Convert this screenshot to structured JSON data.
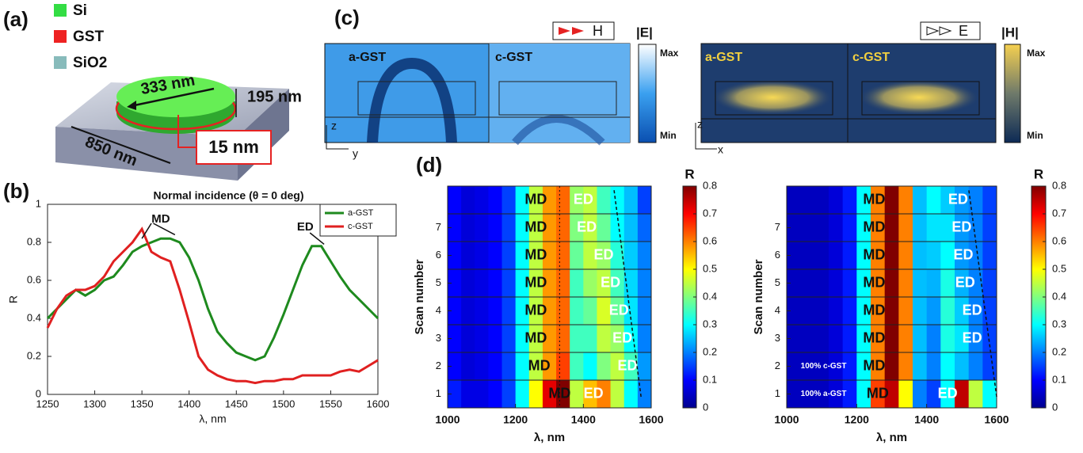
{
  "panel_labels": [
    "(a)",
    "(b)",
    "(c)",
    "(d)"
  ],
  "panel_a": {
    "legend": [
      {
        "label": "Si",
        "color": "#33dd44"
      },
      {
        "label": "GST",
        "color": "#ee2222"
      },
      {
        "label": "SiO2",
        "color": "#88bbbb"
      }
    ],
    "dimensions": [
      "333 nm",
      "195 nm",
      "850 nm",
      "15 nm"
    ]
  },
  "panel_c": {
    "left": {
      "legend": "H",
      "colorbar_title": "|E|",
      "max": "Max",
      "min": "Min",
      "labels": [
        "a-GST",
        "c-GST"
      ],
      "axes": [
        "z",
        "y"
      ]
    },
    "right": {
      "legend": "E",
      "colorbar_title": "|H|",
      "max": "Max",
      "min": "Min",
      "labels": [
        "a-GST",
        "c-GST"
      ],
      "axes": [
        "z",
        "x"
      ]
    }
  },
  "chart_data": [
    {
      "type": "line",
      "title": "Normal incidence (θ = 0 deg)",
      "x_label": "λ, nm",
      "y_label": "R",
      "x": [
        1250,
        1260,
        1270,
        1280,
        1290,
        1300,
        1310,
        1320,
        1330,
        1340,
        1350,
        1360,
        1370,
        1380,
        1390,
        1400,
        1410,
        1420,
        1430,
        1440,
        1450,
        1460,
        1470,
        1480,
        1490,
        1500,
        1510,
        1520,
        1530,
        1540,
        1550,
        1560,
        1570,
        1580,
        1590,
        1600
      ],
      "series": [
        {
          "name": "a-GST",
          "color": "#1e8a1e",
          "values": [
            0.4,
            0.45,
            0.5,
            0.55,
            0.52,
            0.55,
            0.6,
            0.62,
            0.68,
            0.75,
            0.78,
            0.8,
            0.82,
            0.82,
            0.8,
            0.72,
            0.6,
            0.45,
            0.33,
            0.27,
            0.22,
            0.2,
            0.18,
            0.2,
            0.3,
            0.42,
            0.55,
            0.68,
            0.78,
            0.78,
            0.7,
            0.62,
            0.55,
            0.5,
            0.45,
            0.4
          ]
        },
        {
          "name": "c-GST",
          "color": "#e02020",
          "values": [
            0.35,
            0.45,
            0.52,
            0.55,
            0.55,
            0.57,
            0.62,
            0.7,
            0.75,
            0.8,
            0.87,
            0.75,
            0.72,
            0.7,
            0.55,
            0.38,
            0.2,
            0.13,
            0.1,
            0.08,
            0.07,
            0.07,
            0.06,
            0.07,
            0.07,
            0.08,
            0.08,
            0.1,
            0.1,
            0.1,
            0.1,
            0.12,
            0.13,
            0.12,
            0.15,
            0.18
          ]
        }
      ],
      "annotations": [
        "MD",
        "ED"
      ],
      "xlim": [
        1250,
        1600
      ],
      "xticks": [
        1250,
        1300,
        1350,
        1400,
        1450,
        1500,
        1550,
        1600
      ],
      "ylim": [
        0,
        1
      ],
      "yticks": [
        0,
        0.2,
        0.4,
        0.6,
        0.8,
        1
      ],
      "legend": "upper right"
    },
    {
      "type": "heatmap",
      "x_label": "λ, nm",
      "y_label": "Scan number",
      "bins": [
        1000,
        1040,
        1080,
        1120,
        1160,
        1200,
        1240,
        1280,
        1320,
        1360,
        1400,
        1440,
        1480,
        1520,
        1560,
        1600
      ],
      "y": [
        1,
        2,
        3,
        4,
        5,
        6,
        7,
        8
      ],
      "values": [
        [
          0.12,
          0.08,
          0.08,
          0.1,
          0.15,
          0.3,
          0.5,
          0.72,
          0.8,
          0.45,
          0.55,
          0.6,
          0.45,
          0.3,
          0.2
        ],
        [
          0.1,
          0.07,
          0.08,
          0.1,
          0.15,
          0.3,
          0.45,
          0.58,
          0.65,
          0.35,
          0.3,
          0.4,
          0.45,
          0.35,
          0.22
        ],
        [
          0.1,
          0.07,
          0.08,
          0.1,
          0.15,
          0.3,
          0.45,
          0.58,
          0.62,
          0.35,
          0.35,
          0.45,
          0.42,
          0.3,
          0.2
        ],
        [
          0.1,
          0.07,
          0.08,
          0.1,
          0.15,
          0.3,
          0.45,
          0.58,
          0.62,
          0.35,
          0.38,
          0.47,
          0.38,
          0.28,
          0.2
        ],
        [
          0.1,
          0.07,
          0.08,
          0.1,
          0.15,
          0.3,
          0.45,
          0.58,
          0.62,
          0.35,
          0.42,
          0.45,
          0.35,
          0.27,
          0.2
        ],
        [
          0.1,
          0.07,
          0.08,
          0.1,
          0.15,
          0.3,
          0.45,
          0.58,
          0.62,
          0.38,
          0.45,
          0.42,
          0.33,
          0.26,
          0.2
        ],
        [
          0.1,
          0.07,
          0.08,
          0.1,
          0.15,
          0.3,
          0.45,
          0.58,
          0.62,
          0.4,
          0.45,
          0.38,
          0.3,
          0.25,
          0.18
        ],
        [
          0.1,
          0.07,
          0.08,
          0.1,
          0.15,
          0.3,
          0.45,
          0.58,
          0.62,
          0.42,
          0.45,
          0.35,
          0.3,
          0.25,
          0.15
        ]
      ],
      "row_labels": [
        [
          "MD",
          "ED"
        ],
        [
          "MD",
          "ED"
        ],
        [
          "MD",
          "ED"
        ],
        [
          "MD",
          "ED"
        ],
        [
          "MD",
          "ED"
        ],
        [
          "MD",
          "ED"
        ],
        [
          "MD",
          "ED"
        ],
        [
          "MD",
          "ED"
        ]
      ],
      "xlim": [
        1000,
        1600
      ],
      "xticks": [
        1000,
        1200,
        1400,
        1600
      ],
      "ylim": [
        0.5,
        8.5
      ],
      "yticks": [
        1,
        2,
        3,
        4,
        5,
        6,
        7
      ],
      "colorbar_title": "R",
      "clim": [
        0,
        0.8
      ],
      "cticks": [
        0,
        0.1,
        0.2,
        0.3,
        0.4,
        0.5,
        0.6,
        0.7,
        0.8
      ],
      "colormap": "jet"
    },
    {
      "type": "heatmap",
      "x_label": "λ, nm",
      "y_label": "Scan number",
      "bins": [
        1000,
        1040,
        1080,
        1120,
        1160,
        1200,
        1240,
        1280,
        1320,
        1360,
        1400,
        1440,
        1480,
        1520,
        1560,
        1600
      ],
      "y": [
        1,
        2,
        3,
        4,
        5,
        6,
        7,
        8
      ],
      "values": [
        [
          0.05,
          0.05,
          0.05,
          0.07,
          0.12,
          0.3,
          0.65,
          0.75,
          0.5,
          0.2,
          0.15,
          0.3,
          0.75,
          0.45,
          0.3
        ],
        [
          0.05,
          0.05,
          0.05,
          0.07,
          0.12,
          0.3,
          0.6,
          0.8,
          0.6,
          0.25,
          0.2,
          0.3,
          0.25,
          0.2,
          0.15
        ],
        [
          0.05,
          0.05,
          0.05,
          0.07,
          0.12,
          0.3,
          0.6,
          0.8,
          0.6,
          0.25,
          0.2,
          0.32,
          0.28,
          0.2,
          0.15
        ],
        [
          0.05,
          0.05,
          0.05,
          0.07,
          0.12,
          0.3,
          0.6,
          0.8,
          0.6,
          0.25,
          0.22,
          0.33,
          0.26,
          0.2,
          0.15
        ],
        [
          0.05,
          0.05,
          0.05,
          0.07,
          0.12,
          0.3,
          0.6,
          0.8,
          0.6,
          0.25,
          0.24,
          0.32,
          0.24,
          0.2,
          0.15
        ],
        [
          0.05,
          0.05,
          0.05,
          0.07,
          0.12,
          0.3,
          0.6,
          0.8,
          0.6,
          0.25,
          0.26,
          0.3,
          0.22,
          0.2,
          0.15
        ],
        [
          0.05,
          0.05,
          0.05,
          0.07,
          0.12,
          0.3,
          0.6,
          0.8,
          0.6,
          0.25,
          0.28,
          0.28,
          0.22,
          0.2,
          0.15
        ],
        [
          0.05,
          0.05,
          0.05,
          0.07,
          0.12,
          0.3,
          0.6,
          0.8,
          0.6,
          0.25,
          0.3,
          0.26,
          0.22,
          0.2,
          0.15
        ]
      ],
      "row_labels": [
        [
          "100% a-GST",
          "MD",
          "ED"
        ],
        [
          "100% c-GST",
          "MD"
        ],
        [
          "MD",
          "ED"
        ],
        [
          "MD",
          "ED"
        ],
        [
          "MD",
          "ED"
        ],
        [
          "MD",
          "ED"
        ],
        [
          "MD",
          "ED"
        ],
        [
          "MD",
          "ED"
        ]
      ],
      "xlim": [
        1000,
        1600
      ],
      "xticks": [
        1000,
        1200,
        1400,
        1600
      ],
      "ylim": [
        0.5,
        8.5
      ],
      "yticks": [
        1,
        2,
        3,
        4,
        5,
        6,
        7
      ],
      "colorbar_title": "R",
      "clim": [
        0,
        0.8
      ],
      "cticks": [
        0,
        0.1,
        0.2,
        0.3,
        0.4,
        0.5,
        0.6,
        0.7,
        0.8
      ],
      "colormap": "jet"
    }
  ]
}
